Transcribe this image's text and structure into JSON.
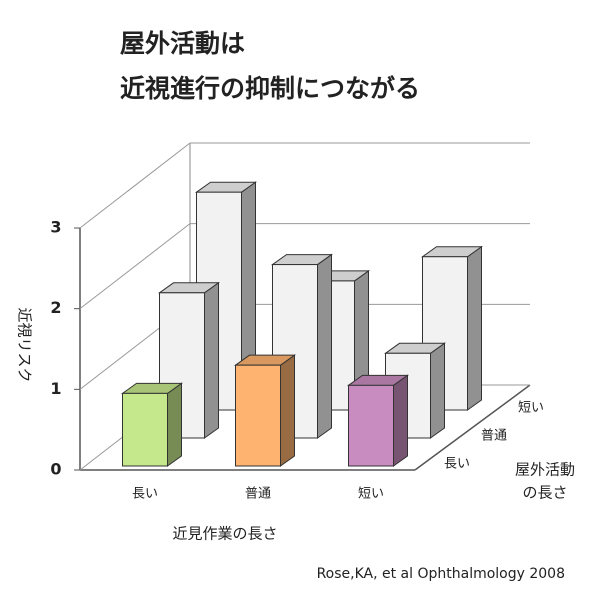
{
  "chart_data": {
    "type": "bar3d",
    "title": "屋外活動は",
    "subtitle": "近視進行の抑制につながる",
    "categories": [
      "長い",
      "普通",
      "短い"
    ],
    "x_label": "近見作業の長さ",
    "y_label": "近視リスク",
    "depth_label": [
      "屋外活動",
      "の長さ"
    ],
    "series": [
      {
        "name": "長い",
        "colors": [
          "#c6e88c",
          "#ffb370",
          "#c88cc0"
        ],
        "values": [
          0.9,
          1.25,
          1.0
        ]
      },
      {
        "name": "普通",
        "colors": [
          "#f2f2f2",
          "#f2f2f2",
          "#f2f2f2"
        ],
        "values": [
          1.8,
          2.15,
          1.05
        ]
      },
      {
        "name": "短い",
        "colors": [
          "#f2f2f2",
          "#f2f2f2",
          "#f2f2f2"
        ],
        "values": [
          2.7,
          1.6,
          1.9
        ]
      }
    ],
    "ylim": [
      0,
      3
    ],
    "yticks": [
      0,
      1,
      2,
      3
    ],
    "grid": true,
    "source": "Rose,KA, et al Ophthalmology 2008"
  }
}
